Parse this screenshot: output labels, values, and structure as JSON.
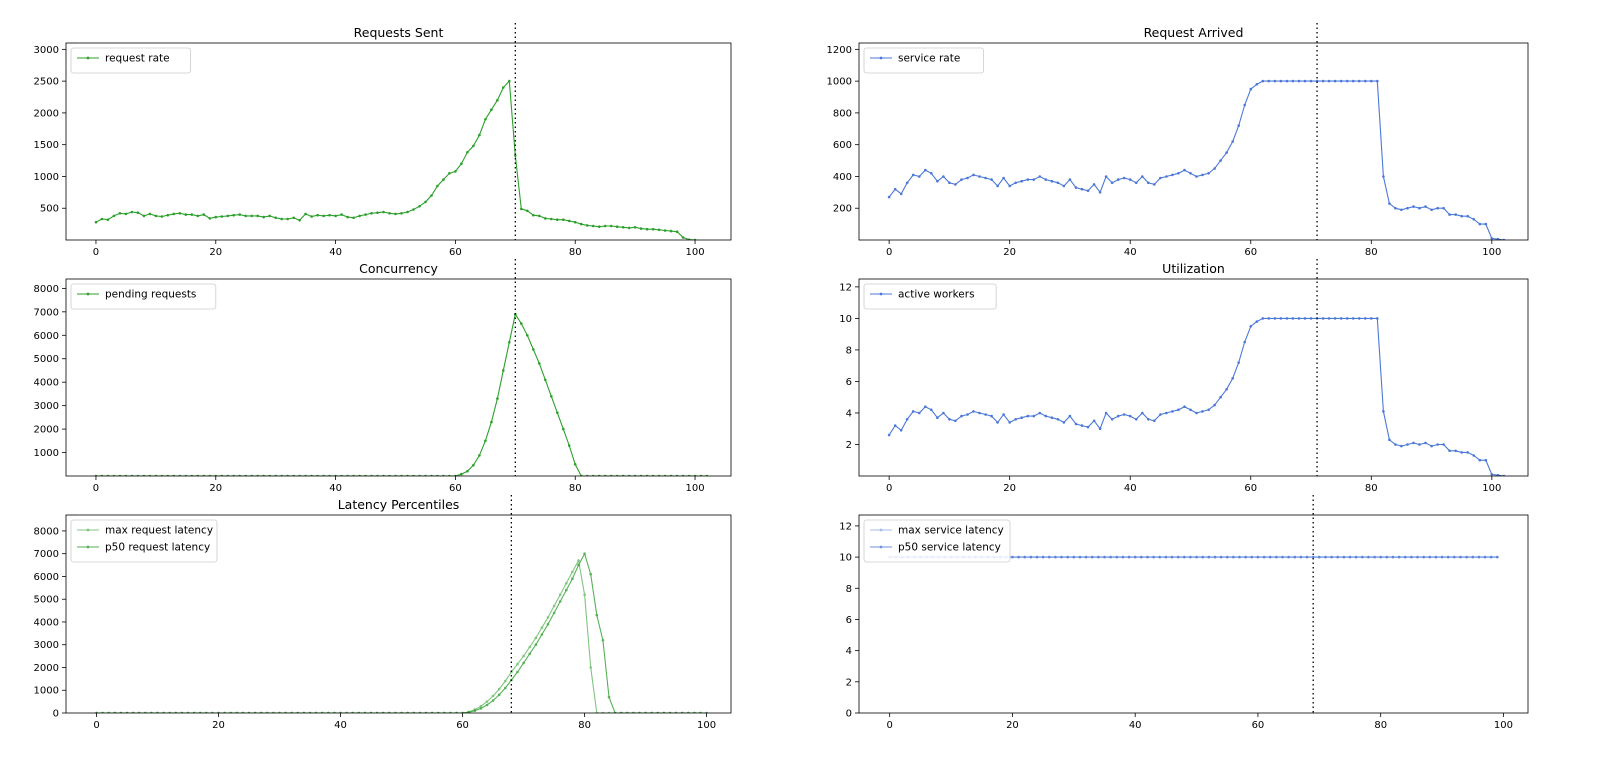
{
  "colors": {
    "green": "#2ca02c",
    "blue": "#4c78d8",
    "frame": "#000000",
    "vline": "#000000"
  },
  "chart_data": [
    {
      "id": "requests-sent",
      "type": "line",
      "title": "Requests Sent",
      "xlabel": "",
      "ylabel": "",
      "xlim": [
        -5,
        106
      ],
      "ylim": [
        0,
        3100
      ],
      "xticks": [
        0,
        20,
        40,
        60,
        80,
        100
      ],
      "yticks": [
        500,
        1000,
        1500,
        2000,
        2500,
        3000
      ],
      "vline": 70,
      "grid": false,
      "legend": "top-left",
      "color": "green",
      "series": [
        {
          "name": "request rate",
          "x_start": 0,
          "x_step": 1,
          "alpha": 1.0,
          "values": [
            280,
            330,
            320,
            380,
            420,
            410,
            440,
            430,
            380,
            410,
            380,
            370,
            390,
            410,
            420,
            400,
            400,
            380,
            400,
            340,
            360,
            370,
            380,
            390,
            400,
            380,
            380,
            380,
            360,
            380,
            350,
            330,
            330,
            350,
            310,
            410,
            370,
            390,
            380,
            390,
            380,
            400,
            360,
            350,
            380,
            400,
            420,
            430,
            440,
            420,
            410,
            420,
            440,
            480,
            530,
            600,
            700,
            850,
            950,
            1050,
            1080,
            1200,
            1380,
            1480,
            1650,
            1900,
            2050,
            2200,
            2400,
            2500,
            1330,
            490,
            460,
            390,
            380,
            340,
            330,
            320,
            320,
            300,
            280,
            250,
            230,
            220,
            210,
            220,
            220,
            210,
            200,
            190,
            200,
            180,
            170,
            170,
            160,
            150,
            140,
            130,
            40,
            5,
            0
          ]
        }
      ]
    },
    {
      "id": "request-arrived",
      "type": "line",
      "title": "Request Arrived",
      "xlabel": "",
      "ylabel": "",
      "xlim": [
        -5,
        106
      ],
      "ylim": [
        0,
        1240
      ],
      "xticks": [
        0,
        20,
        40,
        60,
        80,
        100
      ],
      "yticks": [
        200,
        400,
        600,
        800,
        1000,
        1200
      ],
      "vline": 71,
      "grid": false,
      "legend": "top-left",
      "color": "blue",
      "series": [
        {
          "name": "service rate",
          "x_start": 0,
          "x_step": 1,
          "alpha": 1.0,
          "values": [
            270,
            320,
            290,
            360,
            410,
            400,
            440,
            420,
            370,
            400,
            360,
            350,
            380,
            390,
            410,
            400,
            390,
            380,
            340,
            390,
            340,
            360,
            370,
            380,
            380,
            400,
            380,
            370,
            360,
            340,
            380,
            330,
            320,
            310,
            350,
            300,
            400,
            360,
            380,
            390,
            380,
            360,
            400,
            360,
            350,
            390,
            400,
            410,
            420,
            440,
            420,
            400,
            410,
            420,
            450,
            500,
            550,
            620,
            720,
            850,
            950,
            980,
            1000,
            1000,
            1000,
            1000,
            1000,
            1000,
            1000,
            1000,
            1000,
            1000,
            1000,
            1000,
            1000,
            1000,
            1000,
            1000,
            1000,
            1000,
            1000,
            1000,
            400,
            230,
            200,
            190,
            200,
            210,
            200,
            210,
            190,
            200,
            200,
            160,
            160,
            150,
            150,
            130,
            100,
            100,
            10,
            5,
            0
          ]
        }
      ]
    },
    {
      "id": "concurrency",
      "type": "line",
      "title": "Concurrency",
      "xlabel": "",
      "ylabel": "",
      "xlim": [
        -5,
        106
      ],
      "ylim": [
        0,
        8400
      ],
      "xticks": [
        0,
        20,
        40,
        60,
        80,
        100
      ],
      "yticks": [
        1000,
        2000,
        3000,
        4000,
        5000,
        6000,
        7000,
        8000
      ],
      "vline": 70,
      "grid": false,
      "legend": "top-left",
      "color": "green",
      "series": [
        {
          "name": "pending requests",
          "x_start": 0,
          "x_step": 1,
          "alpha": 1.0,
          "values": [
            0,
            0,
            0,
            0,
            0,
            0,
            0,
            0,
            0,
            0,
            0,
            0,
            0,
            0,
            0,
            0,
            0,
            0,
            0,
            0,
            0,
            0,
            0,
            0,
            0,
            0,
            0,
            0,
            0,
            0,
            0,
            0,
            0,
            0,
            0,
            0,
            0,
            0,
            0,
            0,
            0,
            0,
            0,
            0,
            0,
            0,
            0,
            0,
            0,
            0,
            0,
            0,
            0,
            0,
            0,
            0,
            0,
            0,
            0,
            0,
            0,
            80,
            200,
            460,
            880,
            1500,
            2300,
            3300,
            4500,
            5700,
            6900,
            6500,
            6000,
            5400,
            4800,
            4100,
            3400,
            2700,
            2000,
            1300,
            500,
            0,
            0,
            0,
            0,
            0,
            0,
            0,
            0,
            0,
            0,
            0,
            0,
            0,
            0,
            0,
            0,
            0,
            0,
            0,
            0,
            0,
            0
          ]
        }
      ]
    },
    {
      "id": "utilization",
      "type": "line",
      "title": "Utilization",
      "xlabel": "",
      "ylabel": "",
      "xlim": [
        -5,
        106
      ],
      "ylim": [
        0,
        12.5
      ],
      "xticks": [
        0,
        20,
        40,
        60,
        80,
        100
      ],
      "yticks": [
        2,
        4,
        6,
        8,
        10,
        12
      ],
      "vline": 71,
      "grid": false,
      "legend": "top-left",
      "color": "blue",
      "series": [
        {
          "name": "active workers",
          "x_start": 0,
          "x_step": 1,
          "alpha": 1.0,
          "values": [
            2.6,
            3.2,
            2.9,
            3.6,
            4.1,
            4.0,
            4.4,
            4.2,
            3.7,
            4.0,
            3.6,
            3.5,
            3.8,
            3.9,
            4.1,
            4.0,
            3.9,
            3.8,
            3.4,
            3.9,
            3.4,
            3.6,
            3.7,
            3.8,
            3.8,
            4.0,
            3.8,
            3.7,
            3.6,
            3.4,
            3.8,
            3.3,
            3.2,
            3.1,
            3.5,
            3.0,
            4.0,
            3.6,
            3.8,
            3.9,
            3.8,
            3.6,
            4.0,
            3.6,
            3.5,
            3.9,
            4.0,
            4.1,
            4.2,
            4.4,
            4.2,
            4.0,
            4.1,
            4.2,
            4.5,
            5.0,
            5.5,
            6.2,
            7.2,
            8.5,
            9.5,
            9.8,
            10,
            10,
            10,
            10,
            10,
            10,
            10,
            10,
            10,
            10,
            10,
            10,
            10,
            10,
            10,
            10,
            10,
            10,
            10,
            10,
            4.1,
            2.3,
            2.0,
            1.9,
            2.0,
            2.1,
            2.0,
            2.1,
            1.9,
            2.0,
            2.0,
            1.6,
            1.6,
            1.5,
            1.5,
            1.3,
            1.0,
            1.0,
            0.1,
            0.05,
            0
          ]
        }
      ]
    },
    {
      "id": "latency-percentiles",
      "type": "line",
      "title": "Latency Percentiles",
      "xlabel": "",
      "ylabel": "",
      "xlim": [
        -5,
        104
      ],
      "ylim": [
        0,
        8700
      ],
      "xticks": [
        0,
        20,
        40,
        60,
        80,
        100
      ],
      "yticks": [
        0,
        1000,
        2000,
        3000,
        4000,
        5000,
        6000,
        7000,
        8000
      ],
      "vline": 68,
      "grid": false,
      "legend": "top-left",
      "color": "green",
      "series": [
        {
          "name": "max request latency",
          "x_start": 0,
          "x_step": 1,
          "alpha": 0.6,
          "values": [
            0,
            0,
            0,
            0,
            0,
            0,
            0,
            0,
            0,
            0,
            0,
            0,
            0,
            0,
            0,
            0,
            0,
            0,
            0,
            0,
            0,
            0,
            0,
            0,
            0,
            0,
            0,
            0,
            0,
            0,
            0,
            0,
            0,
            0,
            0,
            0,
            0,
            0,
            0,
            0,
            0,
            0,
            0,
            0,
            0,
            0,
            0,
            0,
            0,
            0,
            0,
            0,
            0,
            0,
            0,
            0,
            0,
            0,
            0,
            0,
            0,
            50,
            150,
            300,
            500,
            750,
            1050,
            1400,
            1800,
            2150,
            2500,
            2900,
            3300,
            3750,
            4200,
            4700,
            5200,
            5700,
            6200,
            6700,
            5200,
            2000,
            0,
            0,
            0,
            0,
            0,
            0,
            0,
            0,
            0,
            0,
            0,
            0,
            0,
            0,
            0,
            0,
            0,
            0
          ]
        },
        {
          "name": "p50 request latency",
          "x_start": 0,
          "x_step": 1,
          "alpha": 0.8,
          "values": [
            0,
            0,
            0,
            0,
            0,
            0,
            0,
            0,
            0,
            0,
            0,
            0,
            0,
            0,
            0,
            0,
            0,
            0,
            0,
            0,
            0,
            0,
            0,
            0,
            0,
            0,
            0,
            0,
            0,
            0,
            0,
            0,
            0,
            0,
            0,
            0,
            0,
            0,
            0,
            0,
            0,
            0,
            0,
            0,
            0,
            0,
            0,
            0,
            0,
            0,
            0,
            0,
            0,
            0,
            0,
            0,
            0,
            0,
            0,
            0,
            0,
            30,
            100,
            200,
            350,
            550,
            800,
            1100,
            1450,
            1800,
            2200,
            2600,
            3000,
            3450,
            3900,
            4400,
            4900,
            5400,
            5900,
            6500,
            7000,
            6100,
            4300,
            3200,
            700,
            0,
            0,
            0,
            0,
            0,
            0,
            0,
            0,
            0,
            0,
            0,
            0,
            0,
            0,
            0,
            0
          ]
        }
      ]
    },
    {
      "id": "service-latency",
      "type": "line",
      "title": "",
      "xlabel": "",
      "ylabel": "",
      "xlim": [
        -5,
        104
      ],
      "ylim": [
        0,
        12.7
      ],
      "xticks": [
        0,
        20,
        40,
        60,
        80,
        100
      ],
      "yticks": [
        0,
        2,
        4,
        6,
        8,
        10,
        12
      ],
      "vline": 69,
      "grid": false,
      "legend": "top-left",
      "color": "blue",
      "series": [
        {
          "name": "max service latency",
          "x_start": 0,
          "x_step": 1,
          "alpha": 0.5,
          "values": [
            10,
            10,
            10,
            10,
            10,
            10,
            10,
            10,
            10,
            10,
            10,
            10,
            10,
            10,
            10,
            10,
            10,
            10,
            10,
            10,
            10,
            10,
            10,
            10,
            10,
            10,
            10,
            10,
            10,
            10,
            10,
            10,
            10,
            10,
            10,
            10,
            10,
            10,
            10,
            10,
            10,
            10,
            10,
            10,
            10,
            10,
            10,
            10,
            10,
            10,
            10,
            10,
            10,
            10,
            10,
            10,
            10,
            10,
            10,
            10,
            10,
            10,
            10,
            10,
            10,
            10,
            10,
            10,
            10,
            10,
            10,
            10,
            10,
            10,
            10,
            10,
            10,
            10,
            10,
            10,
            10,
            10,
            10,
            10,
            10,
            10,
            10,
            10,
            10,
            10,
            10,
            10,
            10,
            10,
            10,
            10,
            10,
            10,
            10,
            10
          ]
        },
        {
          "name": "p50 service latency",
          "x_start": 0,
          "x_step": 1,
          "alpha": 0.8,
          "values": [
            10,
            10,
            10,
            10,
            10,
            10,
            10,
            10,
            10,
            10,
            10,
            10,
            10,
            10,
            10,
            10,
            10,
            10,
            10,
            10,
            10,
            10,
            10,
            10,
            10,
            10,
            10,
            10,
            10,
            10,
            10,
            10,
            10,
            10,
            10,
            10,
            10,
            10,
            10,
            10,
            10,
            10,
            10,
            10,
            10,
            10,
            10,
            10,
            10,
            10,
            10,
            10,
            10,
            10,
            10,
            10,
            10,
            10,
            10,
            10,
            10,
            10,
            10,
            10,
            10,
            10,
            10,
            10,
            10,
            10,
            10,
            10,
            10,
            10,
            10,
            10,
            10,
            10,
            10,
            10,
            10,
            10,
            10,
            10,
            10,
            10,
            10,
            10,
            10,
            10,
            10,
            10,
            10,
            10,
            10,
            10,
            10,
            10,
            10,
            10
          ]
        }
      ]
    }
  ]
}
